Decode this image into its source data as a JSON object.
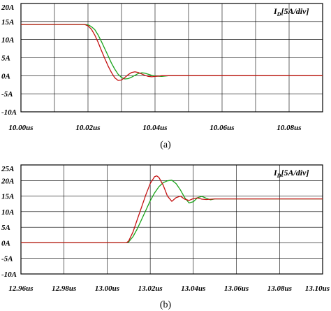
{
  "chart_data": [
    {
      "type": "line",
      "signal_label": "I",
      "signal_subscript": "D",
      "signal_scale": "[5A/div]",
      "caption": "(a)",
      "xlim": [
        10.0,
        10.09
      ],
      "ylim": [
        -10,
        20
      ],
      "x_tick_labels": [
        "10.00us",
        "10.02us",
        "10.04us",
        "10.06us",
        "10.08us"
      ],
      "x_tick_values": [
        10.0,
        10.02,
        10.04,
        10.06,
        10.08
      ],
      "x_grid_values": [
        10.0,
        10.01,
        10.02,
        10.03,
        10.04,
        10.05,
        10.06,
        10.07,
        10.08,
        10.09
      ],
      "y_tick_labels": [
        "20A",
        "15A",
        "10A",
        "5A",
        "0A",
        "-5A",
        "-10A"
      ],
      "y_tick_values": [
        20,
        15,
        10,
        5,
        0,
        -5,
        -10
      ],
      "grid": true,
      "series": [
        {
          "color": "#1aa31a",
          "points": [
            [
              10.0,
              14.2
            ],
            [
              10.019,
              14.2
            ],
            [
              10.02,
              14.1
            ],
            [
              10.021,
              13.6
            ],
            [
              10.022,
              12.8
            ],
            [
              10.023,
              11.3
            ],
            [
              10.024,
              9.5
            ],
            [
              10.025,
              7.5
            ],
            [
              10.026,
              5.5
            ],
            [
              10.027,
              3.5
            ],
            [
              10.028,
              1.8
            ],
            [
              10.029,
              0.4
            ],
            [
              10.03,
              -0.5
            ],
            [
              10.031,
              -0.9
            ],
            [
              10.032,
              -0.8
            ],
            [
              10.033,
              -0.4
            ],
            [
              10.034,
              0.1
            ],
            [
              10.035,
              0.6
            ],
            [
              10.036,
              0.8
            ],
            [
              10.037,
              0.7
            ],
            [
              10.038,
              0.4
            ],
            [
              10.039,
              0.1
            ],
            [
              10.04,
              -0.1
            ],
            [
              10.042,
              -0.2
            ],
            [
              10.044,
              0.0
            ],
            [
              10.05,
              0.0
            ],
            [
              10.09,
              0.0
            ]
          ]
        },
        {
          "color": "#c41212",
          "points": [
            [
              10.0,
              14.2
            ],
            [
              10.019,
              14.2
            ],
            [
              10.02,
              13.8
            ],
            [
              10.021,
              12.9
            ],
            [
              10.022,
              11.3
            ],
            [
              10.023,
              9.3
            ],
            [
              10.024,
              7.0
            ],
            [
              10.025,
              4.8
            ],
            [
              10.026,
              2.7
            ],
            [
              10.027,
              0.9
            ],
            [
              10.028,
              -0.6
            ],
            [
              10.029,
              -1.3
            ],
            [
              10.03,
              -1.2
            ],
            [
              10.031,
              -0.5
            ],
            [
              10.032,
              0.3
            ],
            [
              10.033,
              0.9
            ],
            [
              10.034,
              1.1
            ],
            [
              10.035,
              0.9
            ],
            [
              10.036,
              0.5
            ],
            [
              10.037,
              0.1
            ],
            [
              10.038,
              -0.2
            ],
            [
              10.039,
              -0.3
            ],
            [
              10.04,
              -0.2
            ],
            [
              10.042,
              0.0
            ],
            [
              10.05,
              0.0
            ],
            [
              10.09,
              0.0
            ]
          ]
        }
      ]
    },
    {
      "type": "line",
      "signal_label": "I",
      "signal_subscript": "D",
      "signal_scale": "[5A/div]",
      "caption": "(b)",
      "xlim": [
        12.96,
        13.1
      ],
      "ylim": [
        -10,
        25
      ],
      "x_tick_labels": [
        "12.96us",
        "12.98us",
        "13.00us",
        "13.02us",
        "13.04us",
        "13.06us",
        "13.08us",
        "13.10us"
      ],
      "x_tick_values": [
        12.96,
        12.98,
        13.0,
        13.02,
        13.04,
        13.06,
        13.08,
        13.1
      ],
      "x_grid_values": [
        12.96,
        12.98,
        13.0,
        13.02,
        13.04,
        13.06,
        13.08,
        13.1
      ],
      "y_tick_labels": [
        "25A",
        "20A",
        "15A",
        "10A",
        "5A",
        "0A",
        "-5A",
        "-10A"
      ],
      "y_tick_values": [
        25,
        20,
        15,
        10,
        5,
        0,
        -5,
        -10
      ],
      "grid": true,
      "series": [
        {
          "color": "#1aa31a",
          "points": [
            [
              12.96,
              0.0
            ],
            [
              13.009,
              0.0
            ],
            [
              13.01,
              0.3
            ],
            [
              13.012,
              2.0
            ],
            [
              13.014,
              4.5
            ],
            [
              13.016,
              7.5
            ],
            [
              13.018,
              10.5
            ],
            [
              13.02,
              13.5
            ],
            [
              13.022,
              16.0
            ],
            [
              13.024,
              18.0
            ],
            [
              13.026,
              19.3
            ],
            [
              13.028,
              19.9
            ],
            [
              13.03,
              20.1
            ],
            [
              13.032,
              19.0
            ],
            [
              13.034,
              17.0
            ],
            [
              13.036,
              14.5
            ],
            [
              13.038,
              12.8
            ],
            [
              13.04,
              13.2
            ],
            [
              13.042,
              14.5
            ],
            [
              13.044,
              14.9
            ],
            [
              13.046,
              14.3
            ],
            [
              13.048,
              13.8
            ],
            [
              13.05,
              14.1
            ],
            [
              13.055,
              14.1
            ],
            [
              13.1,
              14.1
            ]
          ]
        },
        {
          "color": "#c41212",
          "points": [
            [
              12.96,
              0.0
            ],
            [
              13.009,
              0.0
            ],
            [
              13.01,
              0.6
            ],
            [
              13.012,
              3.5
            ],
            [
              13.014,
              7.5
            ],
            [
              13.016,
              11.5
            ],
            [
              13.018,
              15.5
            ],
            [
              13.02,
              19.0
            ],
            [
              13.022,
              21.2
            ],
            [
              13.023,
              21.5
            ],
            [
              13.024,
              21.0
            ],
            [
              13.026,
              18.5
            ],
            [
              13.028,
              15.0
            ],
            [
              13.03,
              13.3
            ],
            [
              13.032,
              14.5
            ],
            [
              13.034,
              15.0
            ],
            [
              13.036,
              14.0
            ],
            [
              13.038,
              13.6
            ],
            [
              13.04,
              14.2
            ],
            [
              13.042,
              14.4
            ],
            [
              13.044,
              14.0
            ],
            [
              13.046,
              13.9
            ],
            [
              13.05,
              14.1
            ],
            [
              13.1,
              14.1
            ]
          ]
        }
      ]
    }
  ]
}
